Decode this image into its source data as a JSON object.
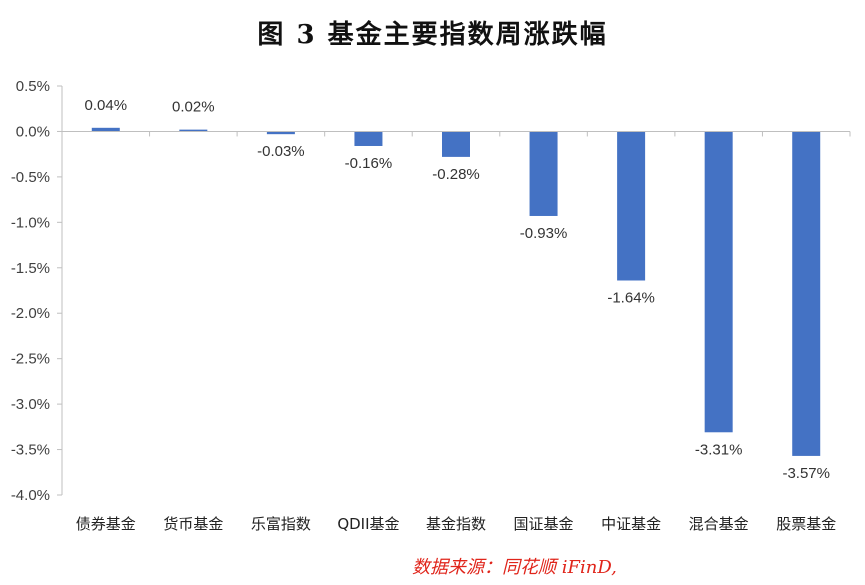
{
  "title": "图 3    基金主要指数周涨跌幅",
  "source": "数据来源：同花顺 iFinD,",
  "chart_data": {
    "type": "bar",
    "title": "图 3    基金主要指数周涨跌幅",
    "categories": [
      "债券基金",
      "货币基金",
      "乐富指数",
      "QDII基金",
      "基金指数",
      "国证基金",
      "中证基金",
      "混合基金",
      "股票基金"
    ],
    "values": [
      0.04,
      0.02,
      -0.03,
      -0.16,
      -0.28,
      -0.93,
      -1.64,
      -3.31,
      -3.57
    ],
    "data_labels": [
      "0.04%",
      "0.02%",
      "-0.03%",
      "-0.16%",
      "-0.28%",
      "-0.93%",
      "-1.64%",
      "-3.31%",
      "-3.57%"
    ],
    "yticks": [
      0.5,
      0.0,
      -0.5,
      -1.0,
      -1.5,
      -2.0,
      -2.5,
      -3.0,
      -3.5,
      -4.0
    ],
    "ytick_labels": [
      "0.5%",
      "0.0%",
      "-0.5%",
      "-1.0%",
      "-1.5%",
      "-2.0%",
      "-2.5%",
      "-3.0%",
      "-3.5%",
      "-4.0%"
    ],
    "ylim": [
      -4.0,
      0.5
    ],
    "xlabel": "",
    "ylabel": "",
    "grid": false,
    "bar_color": "#4472c4"
  }
}
